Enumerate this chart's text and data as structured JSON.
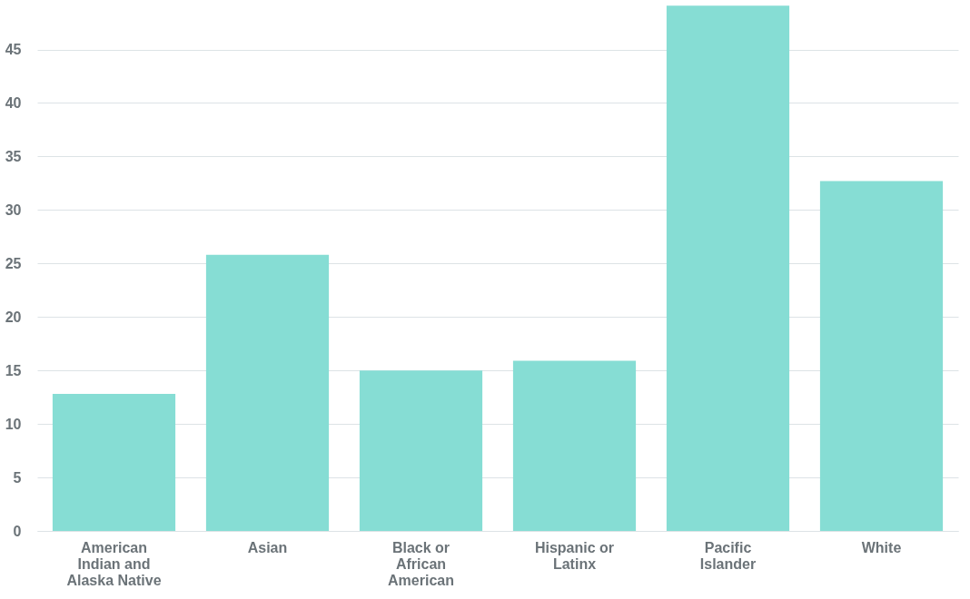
{
  "chart_data": {
    "type": "bar",
    "categories": [
      "American Indian and Alaska Native",
      "Asian",
      "Black or African American",
      "Hispanic or Latinx",
      "Pacific Islander",
      "White"
    ],
    "values": [
      12.8,
      25.8,
      15.0,
      15.9,
      49.1,
      32.7
    ],
    "color": "#86ddd4",
    "ylim": [
      0,
      49.2
    ],
    "yticks": [
      0,
      5,
      10,
      15,
      20,
      25,
      30,
      35,
      40,
      45
    ],
    "grid": "y"
  }
}
